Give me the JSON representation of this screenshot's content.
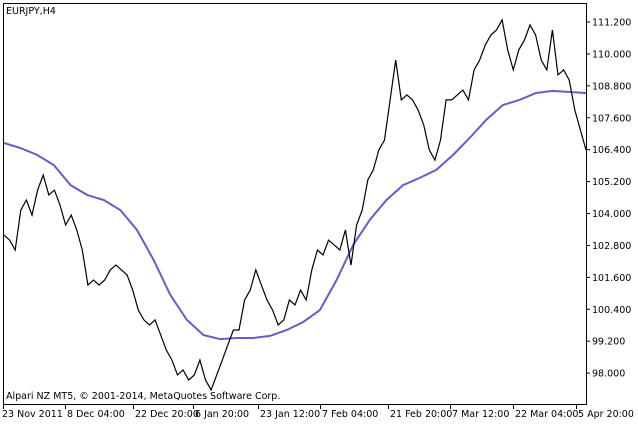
{
  "chart_data": {
    "type": "line",
    "title": "EURJPY,H4",
    "footer": "Alpari NZ MT5, © 2001-2014, MetaQuotes Software Corp.",
    "ylim": [
      96.9,
      111.9
    ],
    "yticks": [
      "111.200",
      "110.000",
      "108.800",
      "107.600",
      "106.400",
      "105.200",
      "104.000",
      "102.800",
      "101.600",
      "100.400",
      "99.200",
      "98.000"
    ],
    "xticks": [
      "23 Nov 2011",
      "8 Dec 04:00",
      "22 Dec 20:00",
      "6 Jan 20:00",
      "23 Jan 12:00",
      "7 Feb 04:00",
      "21 Feb 20:00",
      "7 Mar 12:00",
      "22 Mar 04:00",
      "5 Apr 20:00"
    ],
    "grid": false,
    "colors": {
      "price": "#000000",
      "ma": "#6a5acd",
      "background": "#ffffff"
    },
    "series": [
      {
        "values": [
          103.19,
          103.0,
          102.63,
          104.13,
          104.51,
          103.94,
          104.88,
          105.45,
          104.7,
          104.88,
          104.32,
          103.57,
          103.94,
          103.38,
          102.63,
          101.31,
          101.5,
          101.31,
          101.5,
          101.88,
          102.06,
          101.88,
          101.69,
          101.12,
          100.37,
          100.0,
          99.81,
          100.0,
          99.43,
          98.87,
          98.49,
          97.93,
          98.12,
          97.74,
          97.93,
          98.49,
          97.74,
          97.37,
          97.93,
          98.49,
          99.06,
          99.62,
          99.62,
          100.75,
          101.12,
          101.88,
          101.31,
          100.75,
          100.37,
          99.81,
          100.0,
          100.75,
          100.56,
          101.12,
          100.75,
          101.88,
          102.63,
          102.44,
          103.0,
          102.82,
          102.63,
          103.38,
          102.06,
          103.57,
          104.13,
          105.26,
          105.64,
          106.39,
          106.76,
          108.27,
          109.77,
          108.27,
          108.46,
          108.27,
          107.89,
          107.33,
          106.39,
          106.01,
          106.76,
          108.27,
          108.27,
          108.46,
          108.64,
          108.27,
          109.4,
          109.77,
          110.34,
          110.71,
          110.9,
          111.28,
          110.15,
          109.4,
          110.15,
          110.52,
          111.09,
          110.71,
          109.77,
          109.4,
          110.9,
          109.21,
          109.4,
          109.02,
          107.89,
          107.14,
          106.39
        ]
      },
      {
        "values": [
          106.65,
          106.46,
          106.2,
          105.82,
          105.07,
          104.7,
          104.51,
          104.13,
          103.38,
          102.25,
          100.94,
          100.0,
          99.43,
          99.28,
          99.32,
          99.32,
          99.4,
          99.62,
          99.92,
          100.37,
          101.5,
          102.82,
          103.76,
          104.51,
          105.07,
          105.34,
          105.64,
          106.2,
          106.84,
          107.52,
          108.08,
          108.27,
          108.53,
          108.61,
          108.57,
          108.53
        ]
      }
    ]
  }
}
